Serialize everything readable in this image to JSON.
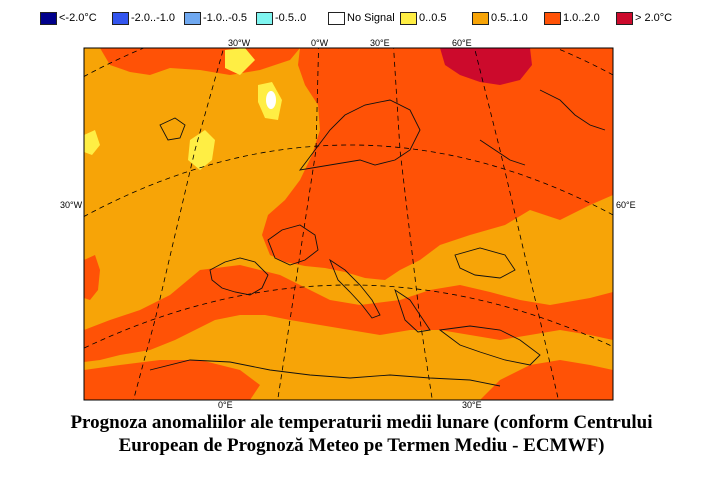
{
  "legend": [
    {
      "label": "<-2.0°C",
      "color": "#00008b"
    },
    {
      "label": "-2.0..-1.0",
      "color": "#3355ee"
    },
    {
      "label": "-1.0..-0.5",
      "color": "#6fa8f0"
    },
    {
      "label": "-0.5..0",
      "color": "#7ff5f0"
    },
    {
      "label": "No Signal",
      "color": "#ffffff"
    },
    {
      "label": "0..0.5",
      "color": "#ffee44"
    },
    {
      "label": "0.5..1.0",
      "color": "#f7a407"
    },
    {
      "label": "1.0..2.0",
      "color": "#ff5206"
    },
    {
      "label": "> 2.0°C",
      "color": "#cc0a2c"
    }
  ],
  "map": {
    "graticule_labels": {
      "top_30w": "30°W",
      "top_0": "0°W",
      "top_30e": "30°E",
      "top_60e": "60°E",
      "left_30w": "30°W",
      "right_60e": "60°E",
      "bottom_0": "0°E",
      "bottom_30e": "30°E"
    },
    "dominant_anomaly": "0.5..1.0"
  },
  "caption": {
    "line1": "Prognoza anomaliilor ale temperaturii medii lunare (conform Centrului",
    "line2": "European de Prognoză Meteo pe Termen Mediu - ECMWF)"
  }
}
